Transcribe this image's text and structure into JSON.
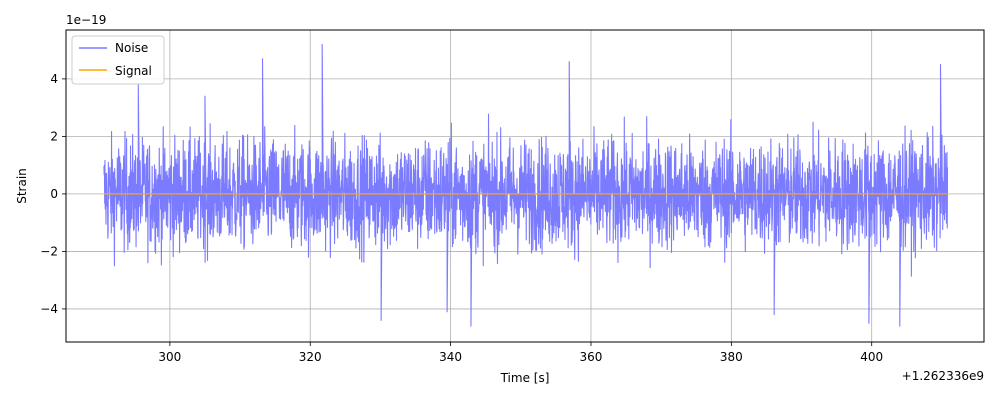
{
  "chart_data": {
    "type": "line",
    "title": "",
    "xlabel": "Time [s]",
    "ylabel": "Strain",
    "x_offset_label": "+1.262336e9",
    "y_scale_label": "1e−19",
    "xlim": [
      285.2,
      416.0
    ],
    "ylim": [
      -5.15,
      5.7
    ],
    "x_ticks": [
      300,
      320,
      340,
      360,
      380,
      400
    ],
    "x_tick_labels": [
      "300",
      "320",
      "340",
      "360",
      "380",
      "400"
    ],
    "y_ticks": [
      -4,
      -2,
      0,
      2,
      4
    ],
    "y_tick_labels": [
      "−4",
      "−2",
      "0",
      "2",
      "4"
    ],
    "grid": true,
    "legend_position": "upper-left",
    "series": [
      {
        "name": "Noise",
        "color": "#7b7bff",
        "x_range": [
          290.6,
          410.8
        ],
        "typical_amplitude": 2.2,
        "peak_max": 5.2,
        "peak_min": -4.6,
        "description_values": [
          [
            295.5,
            3.8
          ],
          [
            305.0,
            3.4
          ],
          [
            313.2,
            4.7
          ],
          [
            321.7,
            5.2
          ],
          [
            330.1,
            -4.4
          ],
          [
            339.5,
            -4.1
          ],
          [
            342.9,
            -4.6
          ],
          [
            356.9,
            4.6
          ],
          [
            386.1,
            -4.2
          ],
          [
            399.6,
            -4.5
          ],
          [
            404.0,
            -4.6
          ],
          [
            409.8,
            4.5
          ]
        ]
      },
      {
        "name": "Signal",
        "color": "#ffa500",
        "x_range": [
          290.6,
          410.8
        ],
        "value": 0.0
      }
    ]
  }
}
